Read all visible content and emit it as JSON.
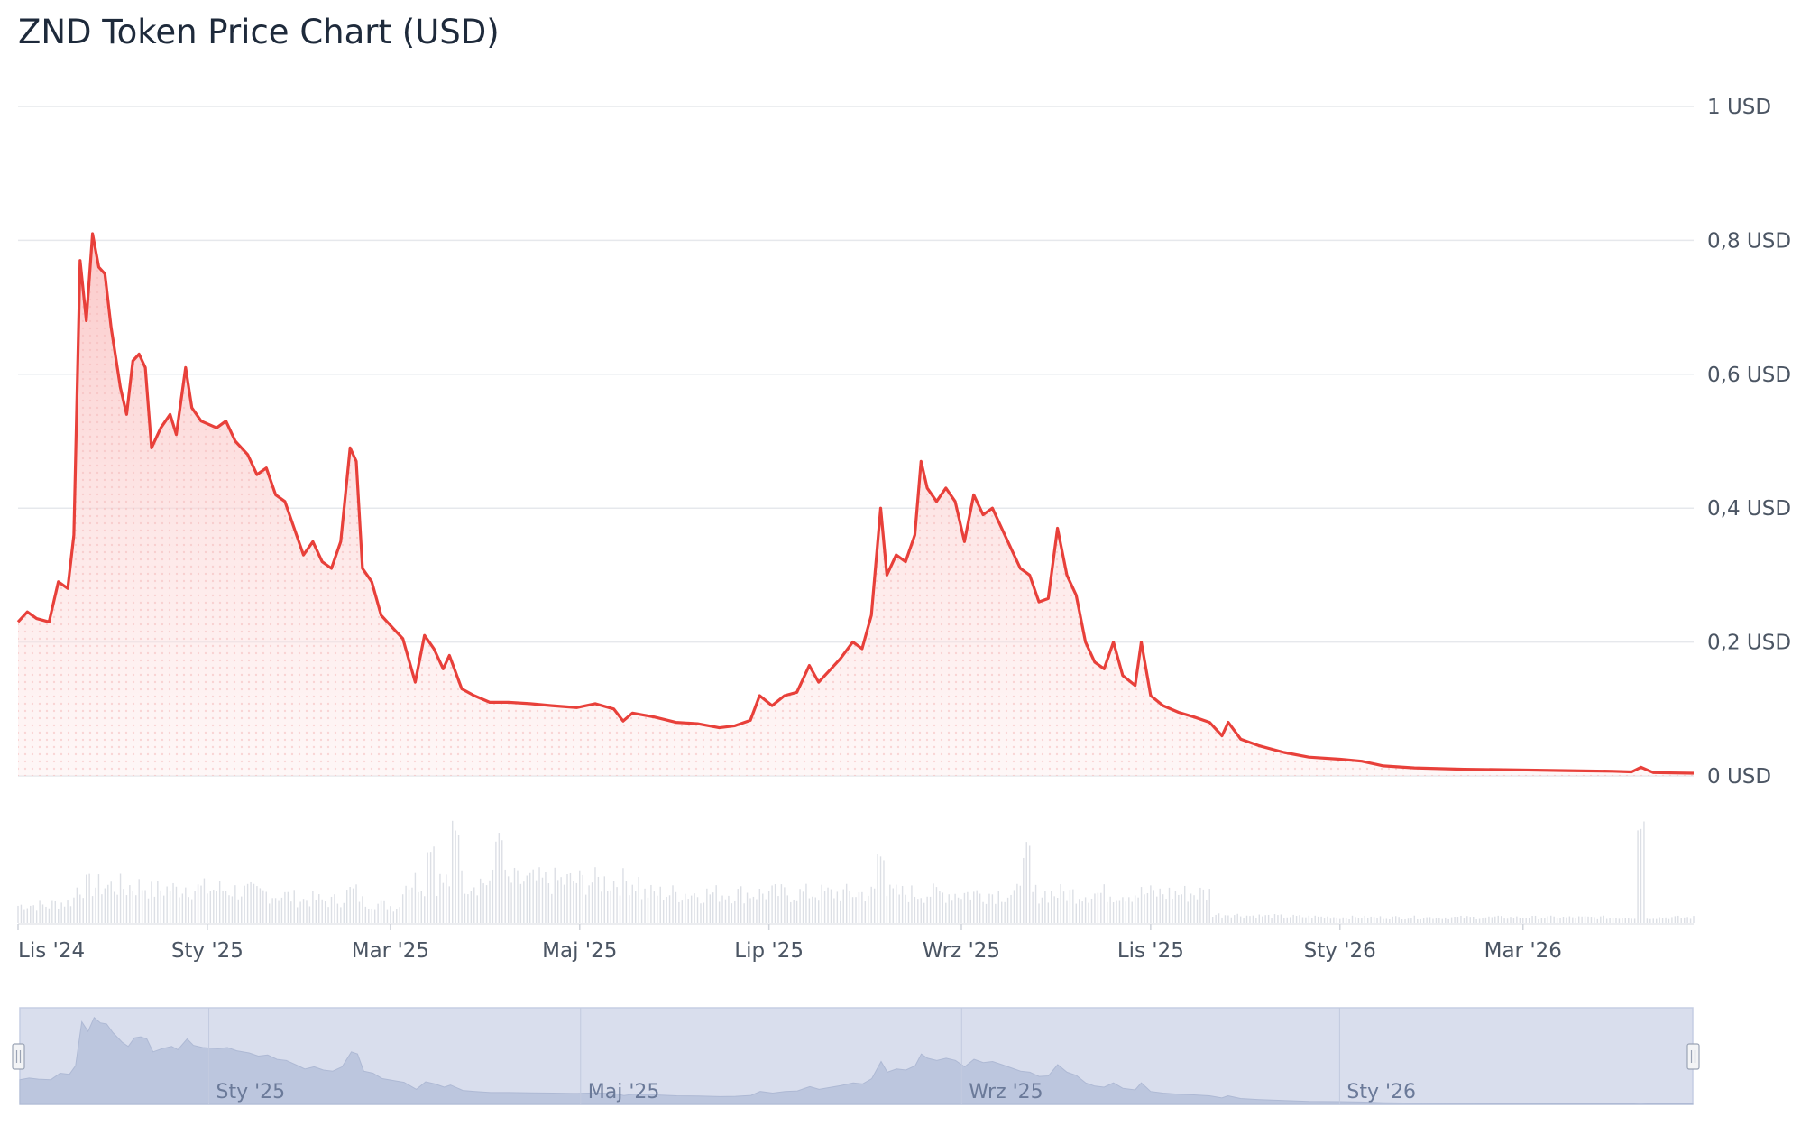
{
  "chart_data": {
    "type": "line",
    "title": "ZND Token Price Chart (USD)",
    "y_unit": "USD",
    "ylim": [
      0,
      1
    ],
    "y_ticks": [
      "0 USD",
      "0,2 USD",
      "0,4 USD",
      "0,6 USD",
      "0,8 USD",
      "1 USD"
    ],
    "x_ticks": [
      "Lis '24",
      "Sty '25",
      "Mar '25",
      "Maj '25",
      "Lip '25",
      "Wrz '25",
      "Lis '25",
      "Sty '26",
      "Mar '26"
    ],
    "navigator_ticks": [
      "Sty '25",
      "Maj '25",
      "Wrz '25",
      "Sty '26"
    ],
    "x_start": "2024-11-01",
    "x_end": "2026-04-25",
    "series": [
      {
        "color": "#e8403a",
        "points": [
          [
            "2024-11-01",
            0.23
          ],
          [
            "2024-11-04",
            0.245
          ],
          [
            "2024-11-07",
            0.235
          ],
          [
            "2024-11-11",
            0.23
          ],
          [
            "2024-11-14",
            0.29
          ],
          [
            "2024-11-17",
            0.28
          ],
          [
            "2024-11-19",
            0.36
          ],
          [
            "2024-11-21",
            0.77
          ],
          [
            "2024-11-23",
            0.68
          ],
          [
            "2024-11-25",
            0.81
          ],
          [
            "2024-11-27",
            0.76
          ],
          [
            "2024-11-29",
            0.75
          ],
          [
            "2024-12-01",
            0.67
          ],
          [
            "2024-12-04",
            0.58
          ],
          [
            "2024-12-06",
            0.54
          ],
          [
            "2024-12-08",
            0.62
          ],
          [
            "2024-12-10",
            0.63
          ],
          [
            "2024-12-12",
            0.61
          ],
          [
            "2024-12-14",
            0.49
          ],
          [
            "2024-12-17",
            0.52
          ],
          [
            "2024-12-20",
            0.54
          ],
          [
            "2024-12-22",
            0.51
          ],
          [
            "2024-12-25",
            0.61
          ],
          [
            "2024-12-27",
            0.55
          ],
          [
            "2024-12-30",
            0.53
          ],
          [
            "2025-01-04",
            0.52
          ],
          [
            "2025-01-07",
            0.53
          ],
          [
            "2025-01-10",
            0.5
          ],
          [
            "2025-01-14",
            0.48
          ],
          [
            "2025-01-17",
            0.45
          ],
          [
            "2025-01-20",
            0.46
          ],
          [
            "2025-01-23",
            0.42
          ],
          [
            "2025-01-26",
            0.41
          ],
          [
            "2025-01-29",
            0.37
          ],
          [
            "2025-02-01",
            0.33
          ],
          [
            "2025-02-04",
            0.35
          ],
          [
            "2025-02-07",
            0.32
          ],
          [
            "2025-02-10",
            0.31
          ],
          [
            "2025-02-13",
            0.35
          ],
          [
            "2025-02-16",
            0.49
          ],
          [
            "2025-02-18",
            0.47
          ],
          [
            "2025-02-20",
            0.31
          ],
          [
            "2025-02-23",
            0.29
          ],
          [
            "2025-02-26",
            0.24
          ],
          [
            "2025-03-02",
            0.22
          ],
          [
            "2025-03-05",
            0.205
          ],
          [
            "2025-03-09",
            0.14
          ],
          [
            "2025-03-12",
            0.21
          ],
          [
            "2025-03-15",
            0.19
          ],
          [
            "2025-03-18",
            0.16
          ],
          [
            "2025-03-20",
            0.18
          ],
          [
            "2025-03-24",
            0.13
          ],
          [
            "2025-03-28",
            0.12
          ],
          [
            "2025-04-02",
            0.11
          ],
          [
            "2025-04-08",
            0.11
          ],
          [
            "2025-04-15",
            0.108
          ],
          [
            "2025-04-22",
            0.105
          ],
          [
            "2025-04-30",
            0.102
          ],
          [
            "2025-05-06",
            0.108
          ],
          [
            "2025-05-12",
            0.1
          ],
          [
            "2025-05-15",
            0.082
          ],
          [
            "2025-05-18",
            0.094
          ],
          [
            "2025-05-25",
            0.088
          ],
          [
            "2025-06-01",
            0.08
          ],
          [
            "2025-06-08",
            0.078
          ],
          [
            "2025-06-15",
            0.072
          ],
          [
            "2025-06-20",
            0.075
          ],
          [
            "2025-06-25",
            0.083
          ],
          [
            "2025-06-28",
            0.12
          ],
          [
            "2025-07-02",
            0.105
          ],
          [
            "2025-07-06",
            0.12
          ],
          [
            "2025-07-10",
            0.125
          ],
          [
            "2025-07-14",
            0.165
          ],
          [
            "2025-07-17",
            0.14
          ],
          [
            "2025-07-21",
            0.16
          ],
          [
            "2025-07-24",
            0.175
          ],
          [
            "2025-07-28",
            0.2
          ],
          [
            "2025-07-31",
            0.19
          ],
          [
            "2025-08-03",
            0.24
          ],
          [
            "2025-08-06",
            0.4
          ],
          [
            "2025-08-08",
            0.3
          ],
          [
            "2025-08-11",
            0.33
          ],
          [
            "2025-08-14",
            0.32
          ],
          [
            "2025-08-17",
            0.36
          ],
          [
            "2025-08-19",
            0.47
          ],
          [
            "2025-08-21",
            0.43
          ],
          [
            "2025-08-24",
            0.41
          ],
          [
            "2025-08-27",
            0.43
          ],
          [
            "2025-08-30",
            0.41
          ],
          [
            "2025-09-02",
            0.35
          ],
          [
            "2025-09-05",
            0.42
          ],
          [
            "2025-09-08",
            0.39
          ],
          [
            "2025-09-11",
            0.4
          ],
          [
            "2025-09-14",
            0.37
          ],
          [
            "2025-09-17",
            0.34
          ],
          [
            "2025-09-20",
            0.31
          ],
          [
            "2025-09-23",
            0.3
          ],
          [
            "2025-09-26",
            0.26
          ],
          [
            "2025-09-29",
            0.265
          ],
          [
            "2025-10-02",
            0.37
          ],
          [
            "2025-10-05",
            0.3
          ],
          [
            "2025-10-08",
            0.27
          ],
          [
            "2025-10-11",
            0.2
          ],
          [
            "2025-10-14",
            0.17
          ],
          [
            "2025-10-17",
            0.16
          ],
          [
            "2025-10-20",
            0.2
          ],
          [
            "2025-10-23",
            0.15
          ],
          [
            "2025-10-27",
            0.135
          ],
          [
            "2025-10-29",
            0.2
          ],
          [
            "2025-11-01",
            0.12
          ],
          [
            "2025-11-05",
            0.105
          ],
          [
            "2025-11-10",
            0.095
          ],
          [
            "2025-11-15",
            0.088
          ],
          [
            "2025-11-20",
            0.08
          ],
          [
            "2025-11-24",
            0.06
          ],
          [
            "2025-11-26",
            0.08
          ],
          [
            "2025-11-30",
            0.055
          ],
          [
            "2025-12-06",
            0.045
          ],
          [
            "2025-12-14",
            0.035
          ],
          [
            "2025-12-22",
            0.028
          ],
          [
            "2026-01-01",
            0.025
          ],
          [
            "2026-01-08",
            0.022
          ],
          [
            "2026-01-15",
            0.015
          ],
          [
            "2026-01-25",
            0.012
          ],
          [
            "2026-02-10",
            0.01
          ],
          [
            "2026-02-28",
            0.009
          ],
          [
            "2026-03-15",
            0.008
          ],
          [
            "2026-03-30",
            0.007
          ],
          [
            "2026-04-05",
            0.006
          ],
          [
            "2026-04-08",
            0.013
          ],
          [
            "2026-04-12",
            0.005
          ],
          [
            "2026-04-25",
            0.004
          ]
        ]
      }
    ],
    "volume_markers": [
      [
        "2025-03-14",
        0.8
      ],
      [
        "2025-03-22",
        1.0
      ],
      [
        "2025-04-05",
        0.85
      ],
      [
        "2025-08-06",
        0.7
      ],
      [
        "2025-09-22",
        0.75
      ],
      [
        "2026-04-08",
        1.0
      ]
    ],
    "navigator": true,
    "grid": true,
    "legend": "none"
  },
  "colors": {
    "line": "#e8403a",
    "area": "#fdd5d5",
    "grid": "#e6e8ec",
    "volume": "#dcdfe5",
    "navigator_bg": "#d9deed",
    "navigator_area": "#bcc6de"
  }
}
